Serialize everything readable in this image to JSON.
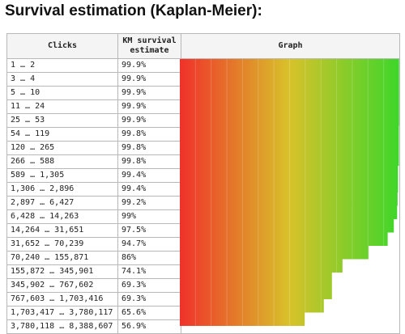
{
  "title": "Survival estimation (Kaplan-Meier):",
  "headers": {
    "clicks": "Clicks",
    "km": "KM survival estimate",
    "graph": "Graph"
  },
  "rows": [
    {
      "clicks": "1 … 2",
      "estimate": "99.9%",
      "value": 99.9
    },
    {
      "clicks": "3 … 4",
      "estimate": "99.9%",
      "value": 99.9
    },
    {
      "clicks": "5 … 10",
      "estimate": "99.9%",
      "value": 99.9
    },
    {
      "clicks": "11 … 24",
      "estimate": "99.9%",
      "value": 99.9
    },
    {
      "clicks": "25 … 53",
      "estimate": "99.9%",
      "value": 99.9
    },
    {
      "clicks": "54 … 119",
      "estimate": "99.8%",
      "value": 99.8
    },
    {
      "clicks": "120 … 265",
      "estimate": "99.8%",
      "value": 99.8
    },
    {
      "clicks": "266 … 588",
      "estimate": "99.8%",
      "value": 99.8
    },
    {
      "clicks": "589 … 1,305",
      "estimate": "99.4%",
      "value": 99.4
    },
    {
      "clicks": "1,306 … 2,896",
      "estimate": "99.4%",
      "value": 99.4
    },
    {
      "clicks": "2,897 … 6,427",
      "estimate": "99.2%",
      "value": 99.2
    },
    {
      "clicks": "6,428 … 14,263",
      "estimate": "99%",
      "value": 99.0
    },
    {
      "clicks": "14,264 … 31,651",
      "estimate": "97.5%",
      "value": 97.5
    },
    {
      "clicks": "31,652 … 70,239",
      "estimate": "94.7%",
      "value": 94.7
    },
    {
      "clicks": "70,240 … 155,871",
      "estimate": "86%",
      "value": 86.0
    },
    {
      "clicks": "155,872 … 345,901",
      "estimate": "74.1%",
      "value": 74.1
    },
    {
      "clicks": "345,902 … 767,602",
      "estimate": "69.3%",
      "value": 69.3
    },
    {
      "clicks": "767,603 … 1,703,416",
      "estimate": "69.3%",
      "value": 69.3
    },
    {
      "clicks": "1,703,417 … 3,780,117",
      "estimate": "65.6%",
      "value": 65.6
    },
    {
      "clicks": "3,780,118 … 8,388,607",
      "estimate": "56.9%",
      "value": 56.9
    }
  ],
  "colors": {
    "gradient_start": "#f0312a",
    "gradient_mid": "#d8c22a",
    "gradient_end": "#3dd62a",
    "mask": "#ffffff"
  }
}
